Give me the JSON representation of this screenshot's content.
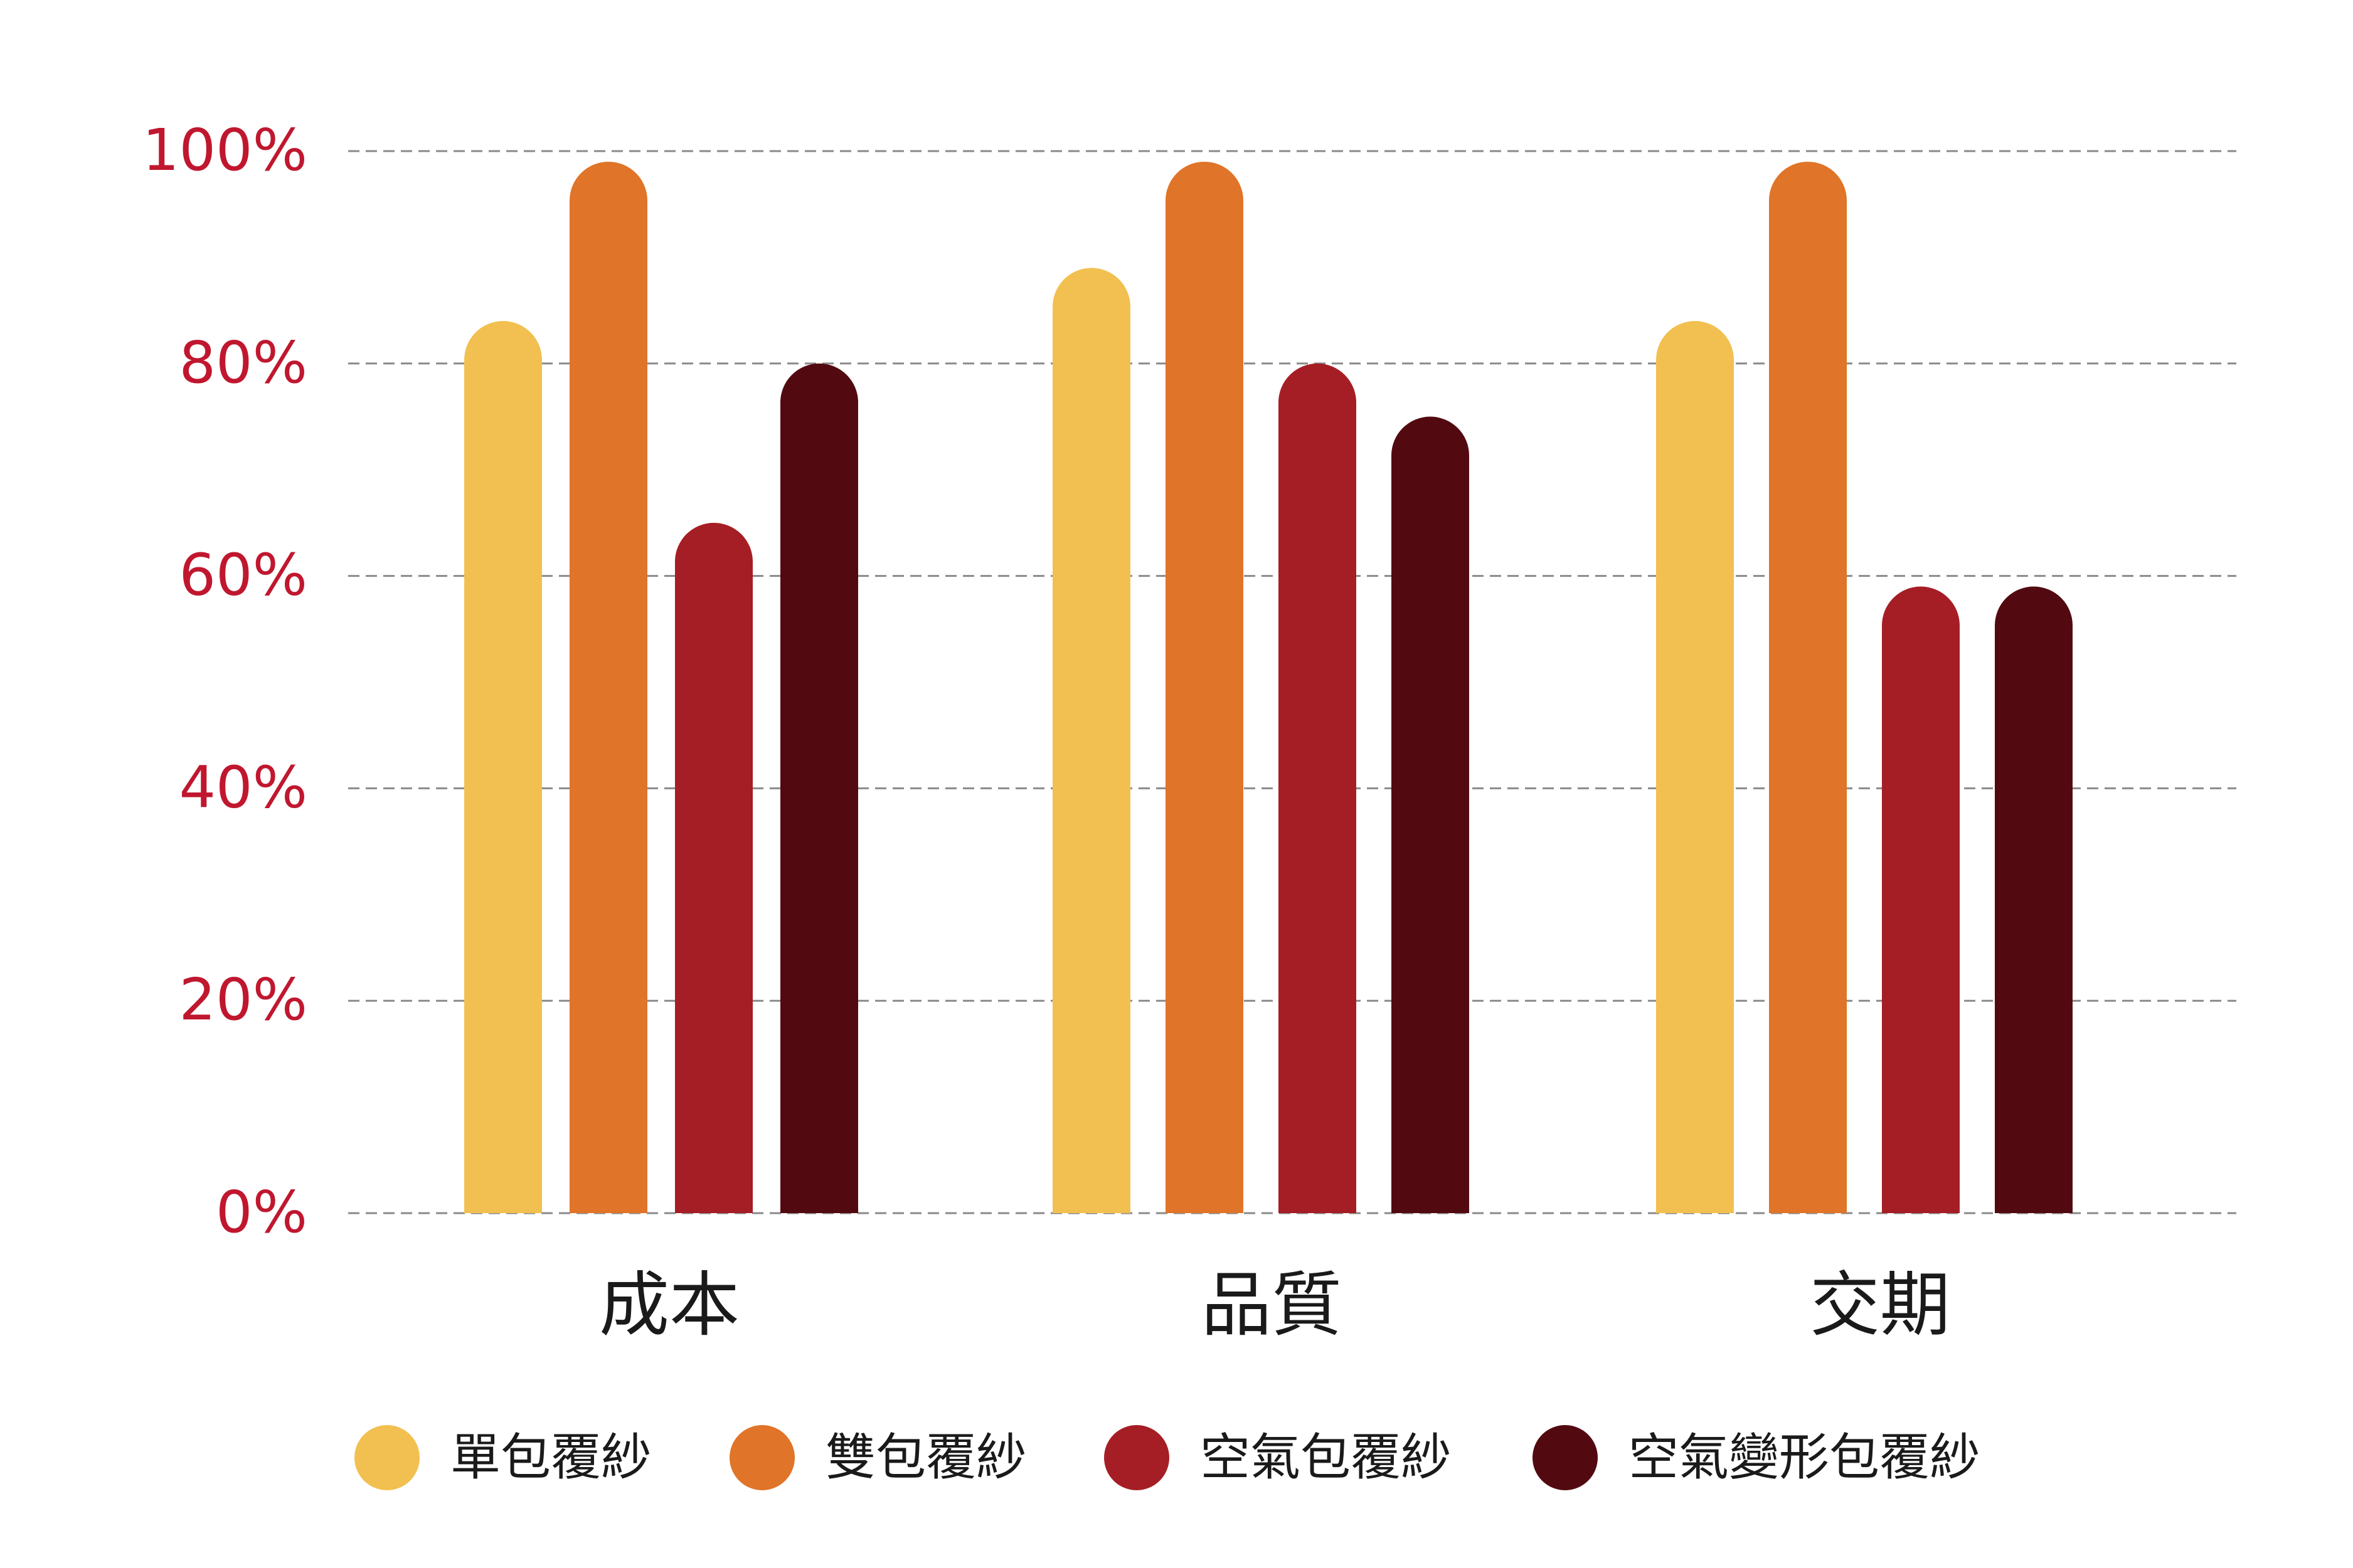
{
  "chart_data": {
    "type": "bar",
    "categories": [
      "成本",
      "品質",
      "交期"
    ],
    "series": [
      {
        "name": "單包覆紗",
        "color": "#f2c050",
        "values": [
          84,
          89,
          84
        ]
      },
      {
        "name": "雙包覆紗",
        "color": "#e07428",
        "values": [
          99,
          99,
          99
        ]
      },
      {
        "name": "空氣包覆紗",
        "color": "#a61e25",
        "values": [
          65,
          80,
          59
        ]
      },
      {
        "name": "空氣變形包覆紗",
        "color": "#520a10",
        "values": [
          80,
          75,
          59
        ]
      }
    ],
    "y_ticks": [
      {
        "value": 0,
        "label": "0%"
      },
      {
        "value": 20,
        "label": "20%"
      },
      {
        "value": 40,
        "label": "40%"
      },
      {
        "value": 60,
        "label": "60%"
      },
      {
        "value": 80,
        "label": "80%"
      },
      {
        "value": 100,
        "label": "100%"
      }
    ],
    "ylim": [
      0,
      100
    ],
    "grid": true,
    "legend_position": "bottom",
    "title": "",
    "xlabel": "",
    "ylabel": ""
  }
}
